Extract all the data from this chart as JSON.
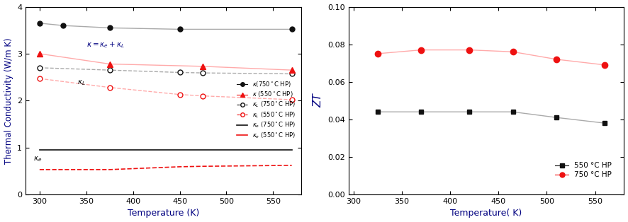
{
  "left": {
    "temp_kappa_750": [
      300,
      325,
      375,
      450,
      570
    ],
    "kappa_750": [
      3.65,
      3.6,
      3.55,
      3.52,
      3.52
    ],
    "temp_kappa_550": [
      300,
      375,
      475,
      570
    ],
    "kappa_550": [
      3.0,
      2.78,
      2.73,
      2.65
    ],
    "temp_kappaL_750": [
      300,
      375,
      450,
      475,
      570
    ],
    "kappaL_750": [
      2.7,
      2.65,
      2.6,
      2.59,
      2.57
    ],
    "temp_kappaL_550": [
      300,
      375,
      450,
      475,
      570
    ],
    "kappaL_550": [
      2.47,
      2.28,
      2.13,
      2.1,
      2.02
    ],
    "temp_kappae_750": [
      300,
      570
    ],
    "kappae_750": [
      0.95,
      0.95
    ],
    "temp_kappae_550": [
      300,
      325,
      375,
      450,
      475,
      570
    ],
    "kappae_550": [
      0.53,
      0.53,
      0.53,
      0.59,
      0.6,
      0.62
    ],
    "xlabel": "Temperature (K)",
    "ylabel": "Thermal Conductivity (W/m K)",
    "xlim": [
      285,
      580
    ],
    "ylim": [
      0,
      4
    ],
    "xticks": [
      300,
      350,
      400,
      450,
      500,
      550
    ],
    "yticks": [
      0,
      1,
      2,
      3,
      4
    ]
  },
  "right": {
    "temp_550": [
      325,
      370,
      420,
      465,
      510,
      560
    ],
    "ZT_550": [
      0.044,
      0.044,
      0.044,
      0.044,
      0.041,
      0.038
    ],
    "temp_750": [
      325,
      370,
      420,
      465,
      510,
      560
    ],
    "ZT_750": [
      0.075,
      0.077,
      0.077,
      0.076,
      0.072,
      0.069
    ],
    "xlabel": "Temperature( K)",
    "ylabel": "ZT",
    "xlim": [
      295,
      580
    ],
    "ylim": [
      0.0,
      0.1
    ],
    "xticks": [
      300,
      350,
      400,
      450,
      500,
      550
    ],
    "yticks": [
      0.0,
      0.02,
      0.04,
      0.06,
      0.08,
      0.1
    ]
  },
  "colors": {
    "black": "#111111",
    "red": "#ee1111",
    "line_gray": "#aaaaaa",
    "line_pink": "#ffaaaa"
  }
}
